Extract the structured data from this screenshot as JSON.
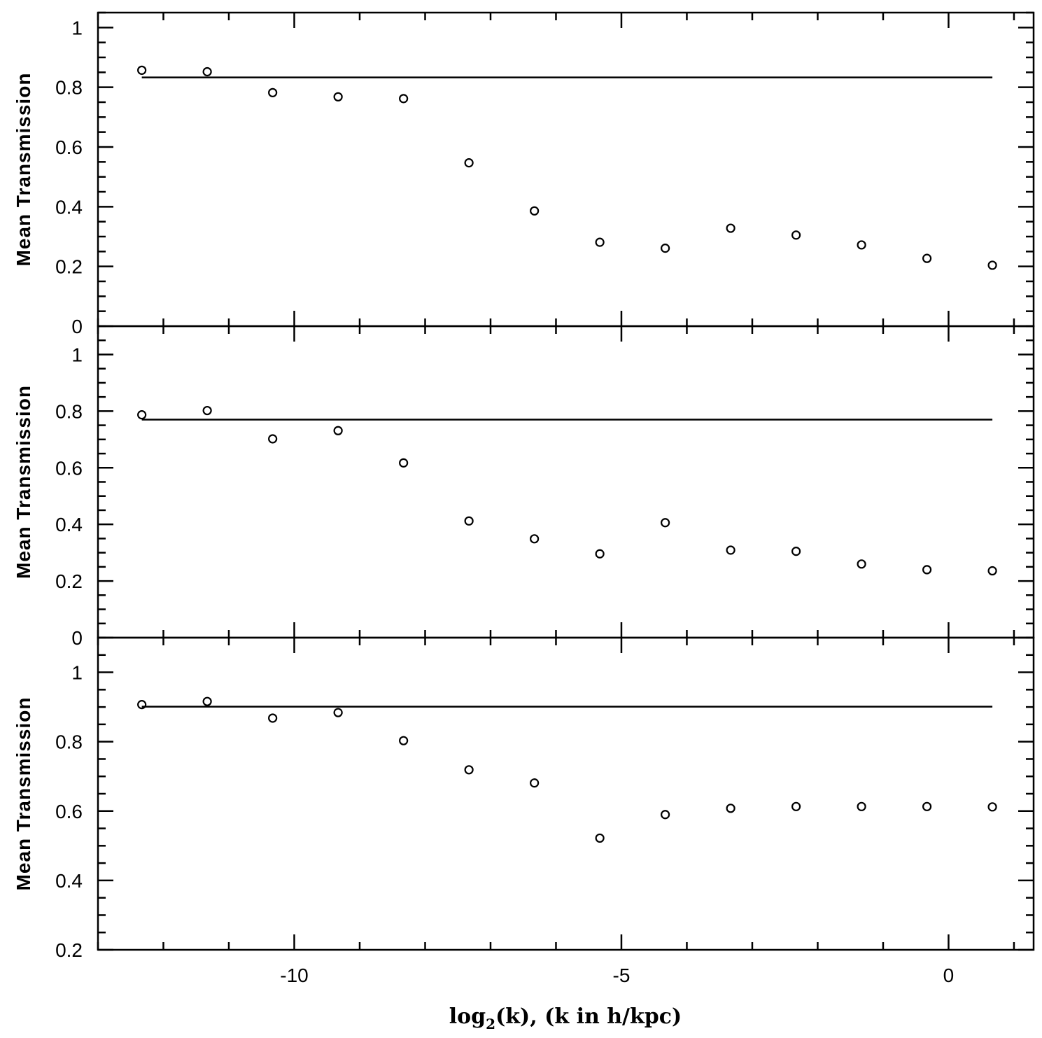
{
  "chart_data": {
    "type": "scatter",
    "xlabel": "log",
    "xlabel_sub": "2",
    "xlabel_rest": "(k), (k in h/kpc)",
    "x_ticks": [
      -10,
      -5,
      0
    ],
    "x_tick_labels": [
      "-10",
      "-5",
      "0"
    ],
    "xlim": [
      -13,
      1.3
    ],
    "panels": [
      {
        "ylabel": "Mean Transmission",
        "ylim": [
          0,
          1.05
        ],
        "y_ticks": [
          0,
          0.2,
          0.4,
          0.6,
          0.8,
          1
        ],
        "y_tick_labels": [
          "0",
          "0.2",
          "0.4",
          "0.6",
          "0.8",
          "1"
        ],
        "x": [
          -12.33,
          -11.33,
          -10.33,
          -9.33,
          -8.33,
          -7.33,
          -6.33,
          -5.33,
          -4.33,
          -3.33,
          -2.33,
          -1.33,
          -0.33,
          0.67
        ],
        "y": [
          0.857,
          0.852,
          0.782,
          0.768,
          0.762,
          0.547,
          0.386,
          0.281,
          0.261,
          0.328,
          0.305,
          0.272,
          0.227,
          0.204
        ],
        "reference_line": 0.833
      },
      {
        "ylabel": "Mean Transmission",
        "ylim": [
          0,
          1.1
        ],
        "y_ticks": [
          0,
          0.2,
          0.4,
          0.6,
          0.8,
          1
        ],
        "y_tick_labels": [
          "0",
          "0.2",
          "0.4",
          "0.6",
          "0.8",
          "1"
        ],
        "x": [
          -12.33,
          -11.33,
          -10.33,
          -9.33,
          -8.33,
          -7.33,
          -6.33,
          -5.33,
          -4.33,
          -3.33,
          -2.33,
          -1.33,
          -0.33,
          0.67
        ],
        "y": [
          0.787,
          0.802,
          0.702,
          0.731,
          0.617,
          0.412,
          0.349,
          0.296,
          0.406,
          0.309,
          0.305,
          0.26,
          0.24,
          0.236
        ],
        "reference_line": 0.77
      },
      {
        "ylabel": "Mean Transmission",
        "ylim": [
          0.2,
          1.1
        ],
        "y_ticks": [
          0.2,
          0.4,
          0.6,
          0.8,
          1
        ],
        "y_tick_labels": [
          "0.2",
          "0.4",
          "0.6",
          "0.8",
          "1"
        ],
        "x": [
          -12.33,
          -11.33,
          -10.33,
          -9.33,
          -8.33,
          -7.33,
          -6.33,
          -5.33,
          -4.33,
          -3.33,
          -2.33,
          -1.33,
          -0.33,
          0.67
        ],
        "y": [
          0.907,
          0.916,
          0.868,
          0.884,
          0.803,
          0.719,
          0.681,
          0.522,
          0.59,
          0.608,
          0.613,
          0.613,
          0.613,
          0.612
        ],
        "reference_line": 0.901
      }
    ]
  }
}
